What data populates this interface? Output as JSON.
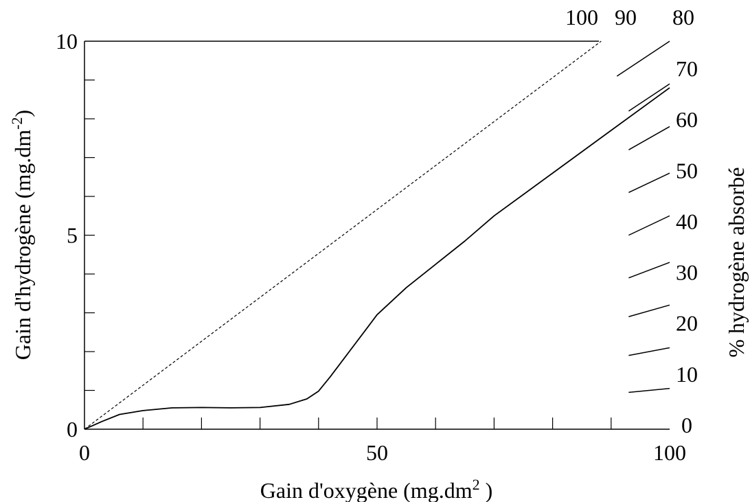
{
  "chart_data": {
    "type": "line",
    "title": "",
    "xlabel": "Gain d'oxygène (mg.dm",
    "xlabel_sup": "2",
    "xlabel_tail": " )",
    "ylabel": "Gain d'hydrogène (mg.dm",
    "ylabel_sup": "-2",
    "ylabel_tail": ")",
    "y2label": "% hydrogène absorbé",
    "xlim": [
      0,
      100
    ],
    "ylim": [
      0,
      10
    ],
    "grid": false,
    "x_tick_labels": [
      {
        "value": 0,
        "label": "0"
      },
      {
        "value": 50,
        "label": "50"
      },
      {
        "value": 100,
        "label": "100"
      }
    ],
    "x_minor_ticks": [
      10,
      20,
      30,
      40,
      50,
      60,
      70,
      80,
      90
    ],
    "y_tick_labels": [
      {
        "value": 0,
        "label": "0"
      },
      {
        "value": 5,
        "label": "5"
      },
      {
        "value": 10,
        "label": "10"
      }
    ],
    "y_minor_ticks": [
      1,
      2,
      3,
      4,
      5,
      6,
      7,
      8,
      9
    ],
    "y2_tick_labels": [
      "0",
      "10",
      "20",
      "30",
      "40",
      "50",
      "60",
      "70"
    ],
    "top_labels": [
      "100",
      "90",
      "80"
    ],
    "series": [
      {
        "style": "dashed",
        "x": [
          0,
          88.3
        ],
        "y": [
          0,
          10
        ]
      },
      {
        "style": "solid",
        "x": [
          0,
          3,
          6,
          10,
          15,
          20,
          25,
          30,
          35,
          38,
          40,
          42,
          45,
          48,
          50,
          55,
          60,
          65,
          70,
          80,
          90,
          100
        ],
        "y": [
          0,
          0.2,
          0.38,
          0.48,
          0.55,
          0.56,
          0.55,
          0.56,
          0.64,
          0.78,
          0.98,
          1.35,
          1.95,
          2.55,
          2.95,
          3.65,
          4.25,
          4.85,
          5.5,
          6.6,
          7.7,
          8.8
        ]
      }
    ],
    "iso_lines": [
      {
        "label": "100",
        "x": [
          0,
          88.3
        ],
        "y": [
          0,
          10
        ]
      },
      {
        "label": "90",
        "x": [
          91,
          100
        ],
        "y": [
          9.1,
          10
        ]
      },
      {
        "label": "80",
        "x": [
          93,
          100
        ],
        "y": [
          8.2,
          8.9
        ]
      },
      {
        "label": "70",
        "x": [
          93,
          100
        ],
        "y": [
          7.2,
          7.8
        ]
      },
      {
        "label": "60",
        "x": [
          93,
          100
        ],
        "y": [
          6.1,
          6.6
        ]
      },
      {
        "label": "50",
        "x": [
          93,
          100
        ],
        "y": [
          5.0,
          5.5
        ]
      },
      {
        "label": "40",
        "x": [
          93,
          100
        ],
        "y": [
          3.9,
          4.3
        ]
      },
      {
        "label": "30",
        "x": [
          93,
          100
        ],
        "y": [
          2.9,
          3.2
        ]
      },
      {
        "label": "20",
        "x": [
          93,
          100
        ],
        "y": [
          1.9,
          2.1
        ]
      },
      {
        "label": "10",
        "x": [
          93,
          100
        ],
        "y": [
          0.95,
          1.05
        ]
      }
    ]
  }
}
